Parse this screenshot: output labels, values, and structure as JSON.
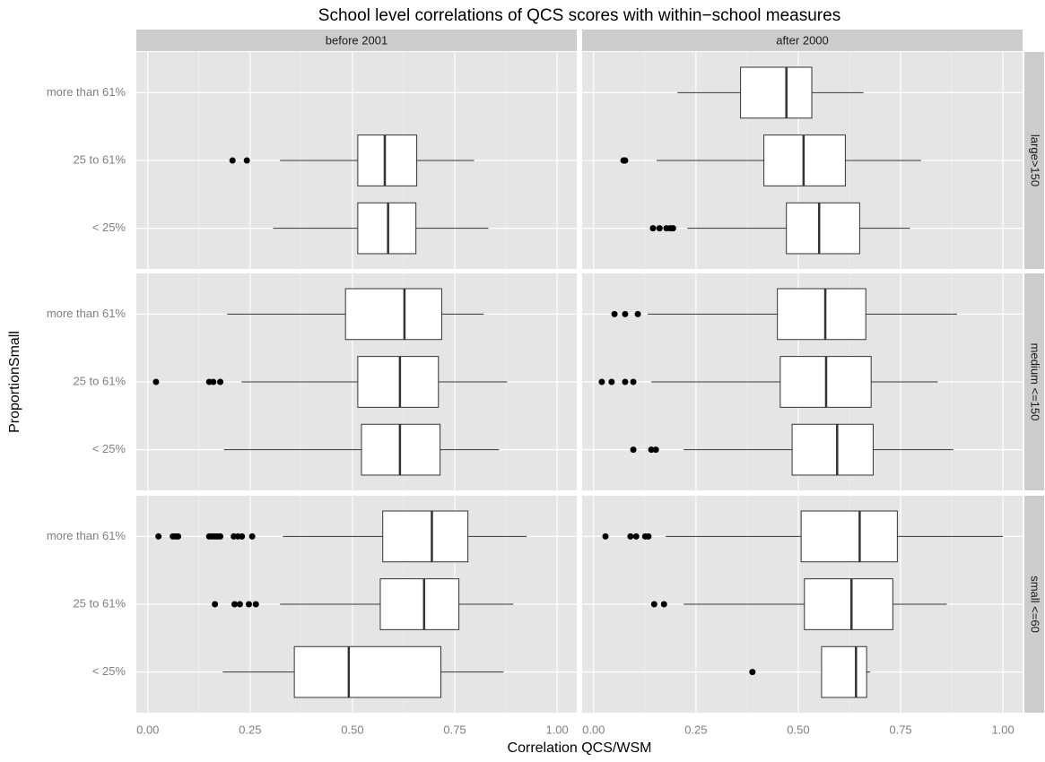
{
  "chart_data": {
    "type": "boxplot",
    "title": "School level correlations of QCS scores with within−school measures",
    "x_label": "Correlation QCS/WSM",
    "y_label": "ProportionSmall",
    "categories": [
      "more than 61%",
      "25 to 61%",
      "< 25%"
    ],
    "row_facets": [
      "large>150",
      "medium <=150",
      "small <=60"
    ],
    "xlim": [
      -0.028,
      1.048
    ],
    "xticks": [
      {
        "value": 0,
        "label": "0.00"
      },
      0.25,
      {
        "value": 0.5,
        "label": "0.50"
      },
      0.75,
      {
        "value": 1,
        "label": "1.00"
      }
    ],
    "grid": true,
    "box_color": "#ffffff",
    "line_color": "#333333",
    "outlier_color": "#000000",
    "series": [
      {
        "name": "before 2001",
        "panels": [
          [
            null,
            {
              "whisker_low": 0.323,
              "q1": 0.513,
              "median": 0.579,
              "q3": 0.657,
              "whisker_high": 0.797,
              "outliers": [
                0.207,
                0.242
              ]
            },
            {
              "whisker_low": 0.306,
              "q1": 0.513,
              "median": 0.587,
              "q3": 0.655,
              "whisker_high": 0.832,
              "outliers": []
            }
          ],
          [
            {
              "whisker_low": 0.194,
              "q1": 0.483,
              "median": 0.627,
              "q3": 0.718,
              "whisker_high": 0.821,
              "outliers": []
            },
            {
              "whisker_low": 0.229,
              "q1": 0.513,
              "median": 0.616,
              "q3": 0.71,
              "whisker_high": 0.878,
              "outliers": [
                0.02,
                0.15,
                0.16,
                0.177
              ]
            },
            {
              "whisker_low": 0.186,
              "q1": 0.522,
              "median": 0.616,
              "q3": 0.714,
              "whisker_high": 0.858,
              "outliers": []
            }
          ],
          [
            {
              "whisker_low": 0.33,
              "q1": 0.574,
              "median": 0.694,
              "q3": 0.782,
              "whisker_high": 0.926,
              "outliers": [
                0.026,
                0.061,
                0.068,
                0.074,
                0.15,
                0.157,
                0.164,
                0.17,
                0.177,
                0.21,
                0.22,
                0.23,
                0.255
              ]
            },
            {
              "whisker_low": 0.323,
              "q1": 0.568,
              "median": 0.675,
              "q3": 0.76,
              "whisker_high": 0.893,
              "outliers": [
                0.164,
                0.212,
                0.225,
                0.247,
                0.264
              ]
            },
            {
              "whisker_low": 0.183,
              "q1": 0.358,
              "median": 0.491,
              "q3": 0.716,
              "whisker_high": 0.869,
              "outliers": []
            }
          ]
        ]
      },
      {
        "name": "after 2000",
        "panels": [
          [
            {
              "whisker_low": 0.205,
              "q1": 0.359,
              "median": 0.471,
              "q3": 0.533,
              "whisker_high": 0.659,
              "outliers": []
            },
            {
              "whisker_low": 0.154,
              "q1": 0.416,
              "median": 0.513,
              "q3": 0.615,
              "whisker_high": 0.8,
              "outliers": [
                0.073,
                0.077
              ]
            },
            {
              "whisker_low": 0.229,
              "q1": 0.471,
              "median": 0.551,
              "q3": 0.65,
              "whisker_high": 0.773,
              "outliers": [
                0.145,
                0.161,
                0.178,
                0.187,
                0.194
              ]
            }
          ],
          [
            {
              "whisker_low": 0.132,
              "q1": 0.449,
              "median": 0.566,
              "q3": 0.665,
              "whisker_high": 0.888,
              "outliers": [
                0.051,
                0.077,
                0.108
              ]
            },
            {
              "whisker_low": 0.141,
              "q1": 0.456,
              "median": 0.568,
              "q3": 0.678,
              "whisker_high": 0.841,
              "outliers": [
                0.02,
                0.044,
                0.077,
                0.097
              ]
            },
            {
              "whisker_low": 0.22,
              "q1": 0.485,
              "median": 0.595,
              "q3": 0.683,
              "whisker_high": 0.879,
              "outliers": [
                0.097,
                0.141,
                0.152
              ]
            }
          ],
          [
            {
              "whisker_low": 0.176,
              "q1": 0.507,
              "median": 0.65,
              "q3": 0.742,
              "whisker_high": 1.0,
              "outliers": [
                0.029,
                0.09,
                0.104,
                0.126,
                0.134
              ]
            },
            {
              "whisker_low": 0.22,
              "q1": 0.515,
              "median": 0.63,
              "q3": 0.731,
              "whisker_high": 0.863,
              "outliers": [
                0.148,
                0.172
              ]
            },
            {
              "whisker_low": 0.557,
              "q1": 0.557,
              "median": 0.641,
              "q3": 0.667,
              "whisker_high": 0.676,
              "outliers": [
                0.388
              ]
            }
          ]
        ]
      }
    ]
  }
}
